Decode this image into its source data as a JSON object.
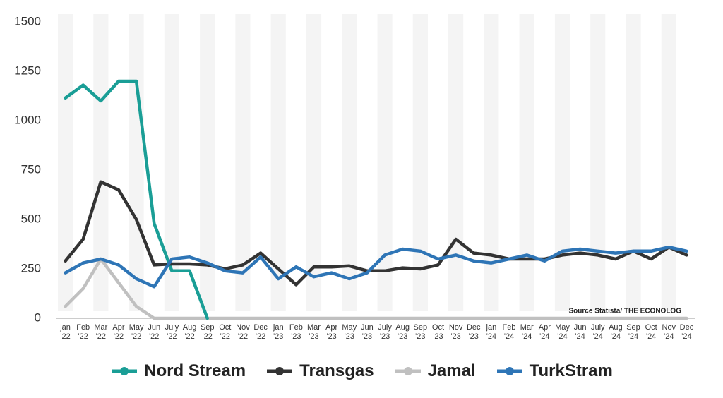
{
  "chart_data": {
    "type": "line",
    "categories": [
      "jan '22",
      "Feb '22",
      "Mar '22",
      "Apr '22",
      "May '22",
      "Jun '22",
      "July '22",
      "Aug '22",
      "Sep '22",
      "Oct '22",
      "Nov '22",
      "Dec '22",
      "jan '23",
      "Feb '23",
      "Mar '23",
      "Apr '23",
      "May '23",
      "Jun '23",
      "July '23",
      "Aug '23",
      "Sep '23",
      "Oct '23",
      "Nov '23",
      "Dec '23",
      "jan '24",
      "Feb '24",
      "Mar '24",
      "Apr '24",
      "May '24",
      "Jun '24",
      "July '24",
      "Aug '24",
      "Sep '24",
      "Oct '24",
      "Nov '24",
      "Dec '24"
    ],
    "series": [
      {
        "name": "Nord Stream",
        "color": "#1a9e96",
        "values": [
          1115,
          1180,
          1100,
          1200,
          1200,
          480,
          240,
          240,
          0,
          null,
          null,
          null,
          null,
          null,
          null,
          null,
          null,
          null,
          null,
          null,
          null,
          null,
          null,
          null,
          null,
          null,
          null,
          null,
          null,
          null,
          null,
          null,
          null,
          null,
          null,
          null
        ]
      },
      {
        "name": "Transgas",
        "color": "#333333",
        "values": [
          290,
          400,
          690,
          650,
          500,
          270,
          275,
          275,
          270,
          250,
          270,
          330,
          250,
          170,
          260,
          260,
          265,
          240,
          240,
          255,
          250,
          270,
          400,
          330,
          320,
          300,
          300,
          300,
          320,
          330,
          320,
          300,
          340,
          300,
          360,
          320
        ]
      },
      {
        "name": "Jamal",
        "color": "#c0c0c0",
        "values": [
          60,
          150,
          300,
          180,
          60,
          0,
          0,
          0,
          0,
          0,
          0,
          0,
          0,
          0,
          0,
          0,
          0,
          0,
          0,
          0,
          0,
          0,
          0,
          0,
          0,
          0,
          0,
          0,
          0,
          0,
          0,
          0,
          0,
          0,
          0,
          0
        ]
      },
      {
        "name": "TurkStram",
        "color": "#2e75b6",
        "values": [
          230,
          280,
          300,
          270,
          200,
          160,
          300,
          310,
          280,
          240,
          230,
          310,
          200,
          260,
          210,
          230,
          200,
          230,
          320,
          350,
          340,
          300,
          320,
          290,
          280,
          300,
          320,
          290,
          340,
          350,
          340,
          330,
          340,
          340,
          360,
          340
        ]
      }
    ],
    "ylim": [
      0,
      1500
    ],
    "yticks": [
      0,
      250,
      500,
      750,
      1000,
      1250,
      1500
    ],
    "annotation": "Source  Statista/ THE ECONOLOG",
    "legend": "bottom",
    "grid": false
  }
}
